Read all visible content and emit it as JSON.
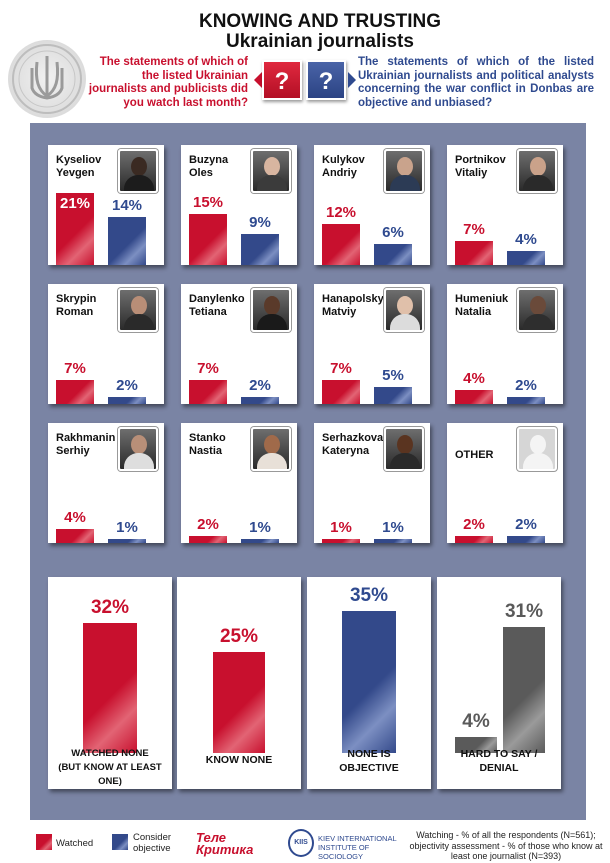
{
  "title_line1": "KNOWING AND TRUSTING",
  "title_line2": "Ukrainian journalists",
  "question_watched": "The statements of which of the listed Ukrainian journalists and publicists did you watch last month?",
  "question_objective": "The statements of which of the listed Ukrainian journalists and political analysts concerning the war conflict in Donbas are objective and unbiased?",
  "question_mark": "?",
  "legend": {
    "watched": "Watched",
    "objective_line1": "Consider",
    "objective_line2": "objective"
  },
  "logos": {
    "telekritika_line1": "Теле",
    "telekritika_line2": "Критика",
    "kiis_abbr": "KIIS",
    "kiis_line1": "KIEV INTERNATIONAL",
    "kiis_line2": "INSTITUTE OF SOCIOLOGY"
  },
  "note": "Watching - % of all the respondents (N=561); objectivity assessment - % of those who know at least one journalist (N=393)",
  "colors": {
    "watched": "#c8102e",
    "objective": "#2f4a8f",
    "hard_to_say": "#5a5a5a",
    "panel": "#7a84a4"
  },
  "chart_data": {
    "type": "bar",
    "unit": "%",
    "series": [
      {
        "name": "Watched",
        "color": "#c8102e"
      },
      {
        "name": "Consider objective",
        "color": "#2f4a8f"
      }
    ],
    "journalists": [
      {
        "first": "Kyseliov",
        "last": "Yevgen",
        "watched": 21,
        "objective": 14,
        "photo": "portrait"
      },
      {
        "first": "Buzyna",
        "last": "Oles",
        "watched": 15,
        "objective": 9,
        "photo": "portrait"
      },
      {
        "first": "Kulykov",
        "last": "Andriy",
        "watched": 12,
        "objective": 6,
        "photo": "portrait"
      },
      {
        "first": "Portnikov",
        "last": "Vitaliy",
        "watched": 7,
        "objective": 4,
        "photo": "portrait"
      },
      {
        "first": "Skrypin",
        "last": "Roman",
        "watched": 7,
        "objective": 2,
        "photo": "portrait"
      },
      {
        "first": "Danylenko",
        "last": "Tetiana",
        "watched": 7,
        "objective": 2,
        "photo": "portrait"
      },
      {
        "first": "Hanapolsky",
        "last": "Matviy",
        "watched": 7,
        "objective": 5,
        "photo": "portrait"
      },
      {
        "first": "Humeniuk",
        "last": "Natalia",
        "watched": 4,
        "objective": 2,
        "photo": "portrait"
      },
      {
        "first": "Rakhmanin",
        "last": "Serhiy",
        "watched": 4,
        "objective": 1,
        "photo": "portrait"
      },
      {
        "first": "Stanko",
        "last": "Nastia",
        "watched": 2,
        "objective": 1,
        "photo": "portrait"
      },
      {
        "first": "Serhazkova",
        "last": "Kateryna",
        "watched": 1,
        "objective": 1,
        "photo": "portrait"
      },
      {
        "first": "OTHER",
        "last": "",
        "watched": 2,
        "objective": 2,
        "photo": "silhouette"
      }
    ],
    "summary": [
      {
        "label_line1": "WATCHED NONE",
        "label_line2": "(BUT KNOW AT LEAST ONE)",
        "bars": [
          {
            "value": 32,
            "color": "red"
          }
        ]
      },
      {
        "label_line1": "KNOW NONE",
        "label_line2": "",
        "bars": [
          {
            "value": 25,
            "color": "red"
          }
        ]
      },
      {
        "label_line1": "NONE IS",
        "label_line2": "OBJECTIVE",
        "bars": [
          {
            "value": 35,
            "color": "blue"
          }
        ]
      },
      {
        "label_line1": "HARD TO SAY /",
        "label_line2": "DENIAL",
        "bars": [
          {
            "value": 4,
            "color": "gray"
          },
          {
            "value": 31,
            "color": "gray"
          }
        ]
      }
    ]
  }
}
